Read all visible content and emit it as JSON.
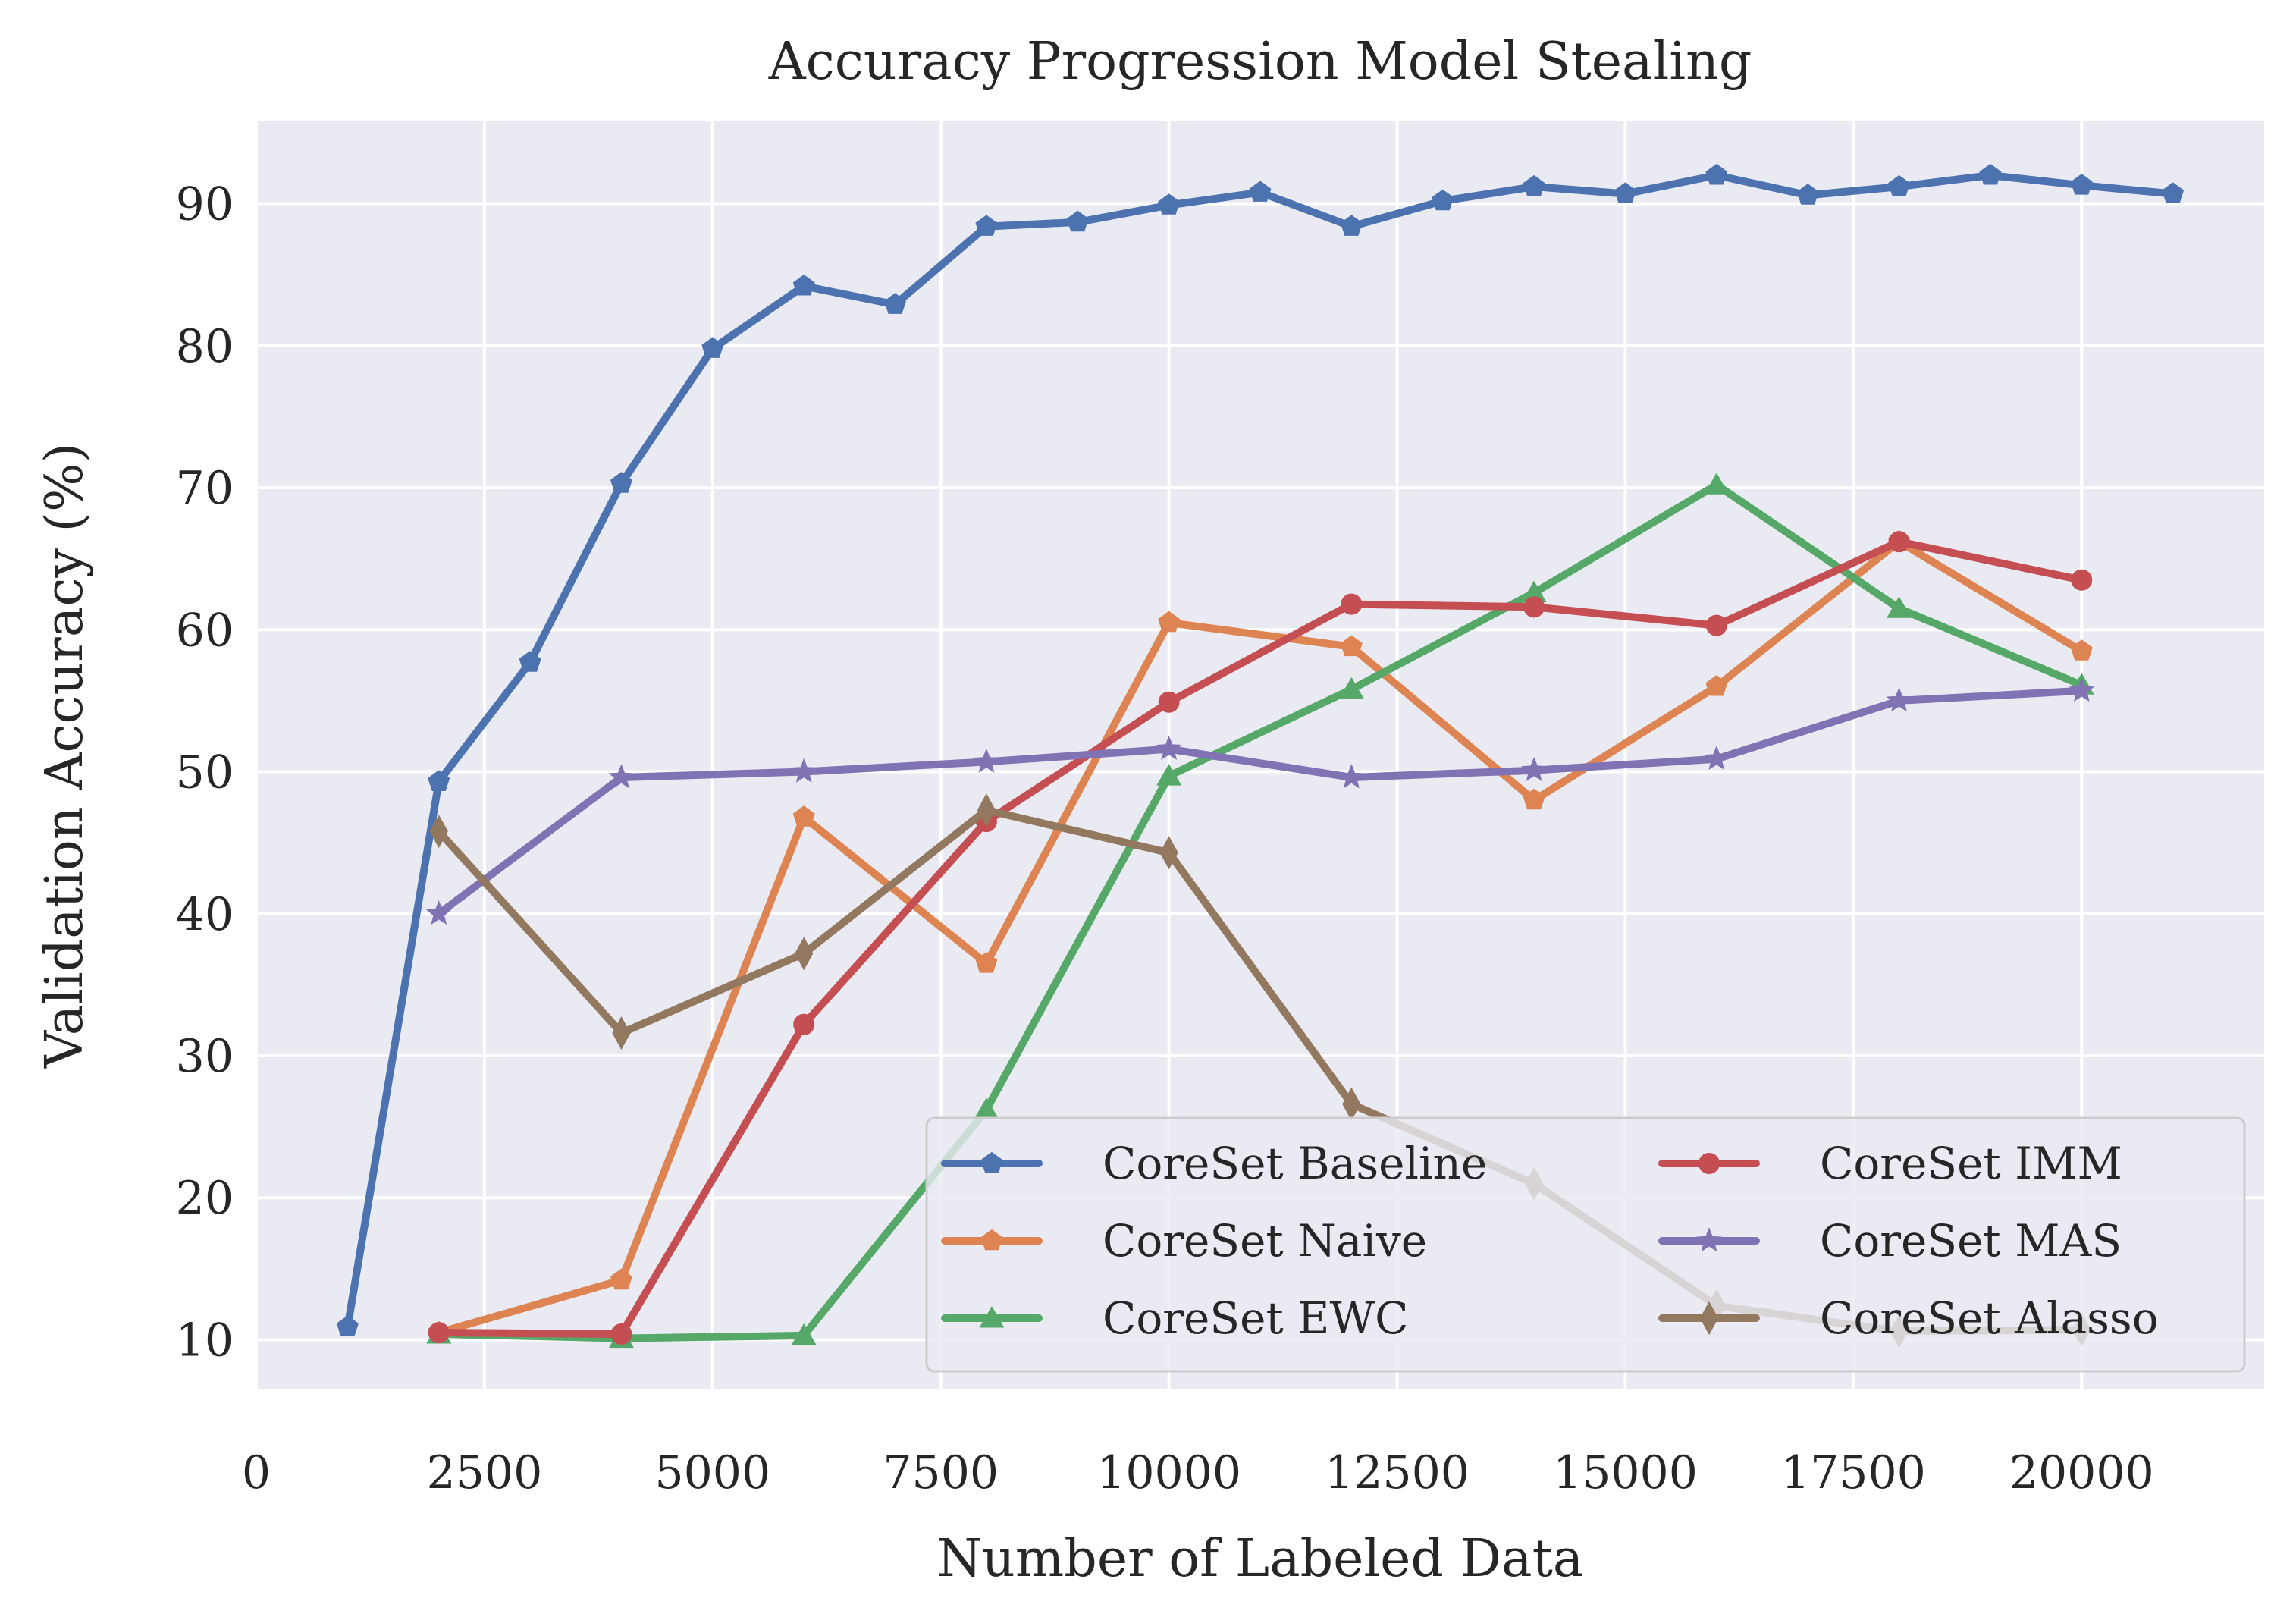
{
  "chart_data": {
    "type": "line",
    "title": "Accuracy Progression Model Stealing",
    "xlabel": "Number of Labeled Data",
    "ylabel": "Validation Accuracy (%)",
    "xlim": [
      0,
      22000
    ],
    "ylim": [
      6.5,
      95.8
    ],
    "xticks": [
      0,
      2500,
      5000,
      7500,
      10000,
      12500,
      15000,
      17500,
      20000
    ],
    "yticks": [
      10,
      20,
      30,
      40,
      50,
      60,
      70,
      80,
      90
    ],
    "grid": true,
    "legend": {
      "placement": "lower-right",
      "columns": 2
    },
    "series": [
      {
        "name": "CoreSet Baseline",
        "color": "#4c72b0",
        "marker": "pentagon",
        "x": [
          1000,
          2000,
          3000,
          4000,
          5000,
          6000,
          7000,
          8000,
          9000,
          10000,
          11000,
          12000,
          13000,
          14000,
          15000,
          16000,
          17000,
          18000,
          19000,
          20000,
          21000
        ],
        "y": [
          10.9,
          49.3,
          57.7,
          70.3,
          79.8,
          84.2,
          82.9,
          88.4,
          88.7,
          89.9,
          90.8,
          88.4,
          90.2,
          91.2,
          90.7,
          92.0,
          90.6,
          91.2,
          92.0,
          91.3,
          90.7
        ]
      },
      {
        "name": "CoreSet Naive",
        "color": "#dd8452",
        "marker": "pentagon",
        "x": [
          2000,
          4000,
          6000,
          8000,
          10000,
          12000,
          14000,
          16000,
          18000,
          20000
        ],
        "y": [
          10.5,
          14.2,
          46.8,
          36.5,
          60.5,
          58.8,
          48.0,
          56.0,
          66.2,
          58.5
        ]
      },
      {
        "name": "CoreSet EWC",
        "color": "#55a868",
        "marker": "triangle",
        "x": [
          2000,
          4000,
          6000,
          8000,
          10000,
          12000,
          14000,
          16000,
          18000,
          20000
        ],
        "y": [
          10.4,
          10.1,
          10.3,
          26.2,
          49.7,
          55.8,
          62.6,
          70.2,
          61.5,
          56.1
        ]
      },
      {
        "name": "CoreSet IMM",
        "color": "#c44e52",
        "marker": "circle",
        "x": [
          2000,
          4000,
          6000,
          8000,
          10000,
          12000,
          14000,
          16000,
          18000,
          20000
        ],
        "y": [
          10.5,
          10.4,
          32.2,
          46.5,
          54.9,
          61.8,
          61.6,
          60.3,
          66.2,
          63.5
        ]
      },
      {
        "name": "CoreSet MAS",
        "color": "#8172b3",
        "marker": "star",
        "x": [
          2000,
          4000,
          6000,
          8000,
          10000,
          12000,
          14000,
          16000,
          18000,
          20000
        ],
        "y": [
          40.0,
          49.6,
          50.0,
          50.7,
          51.6,
          49.6,
          50.1,
          50.9,
          55.0,
          55.7
        ]
      },
      {
        "name": "CoreSet Alasso",
        "color": "#937860",
        "marker": "thin-diamond",
        "x": [
          2000,
          4000,
          6000,
          8000,
          10000,
          12000,
          14000,
          16000,
          18000,
          20000
        ],
        "y": [
          45.8,
          31.6,
          37.2,
          47.3,
          44.3,
          26.6,
          21.0,
          12.4,
          10.6,
          10.7
        ]
      }
    ]
  }
}
